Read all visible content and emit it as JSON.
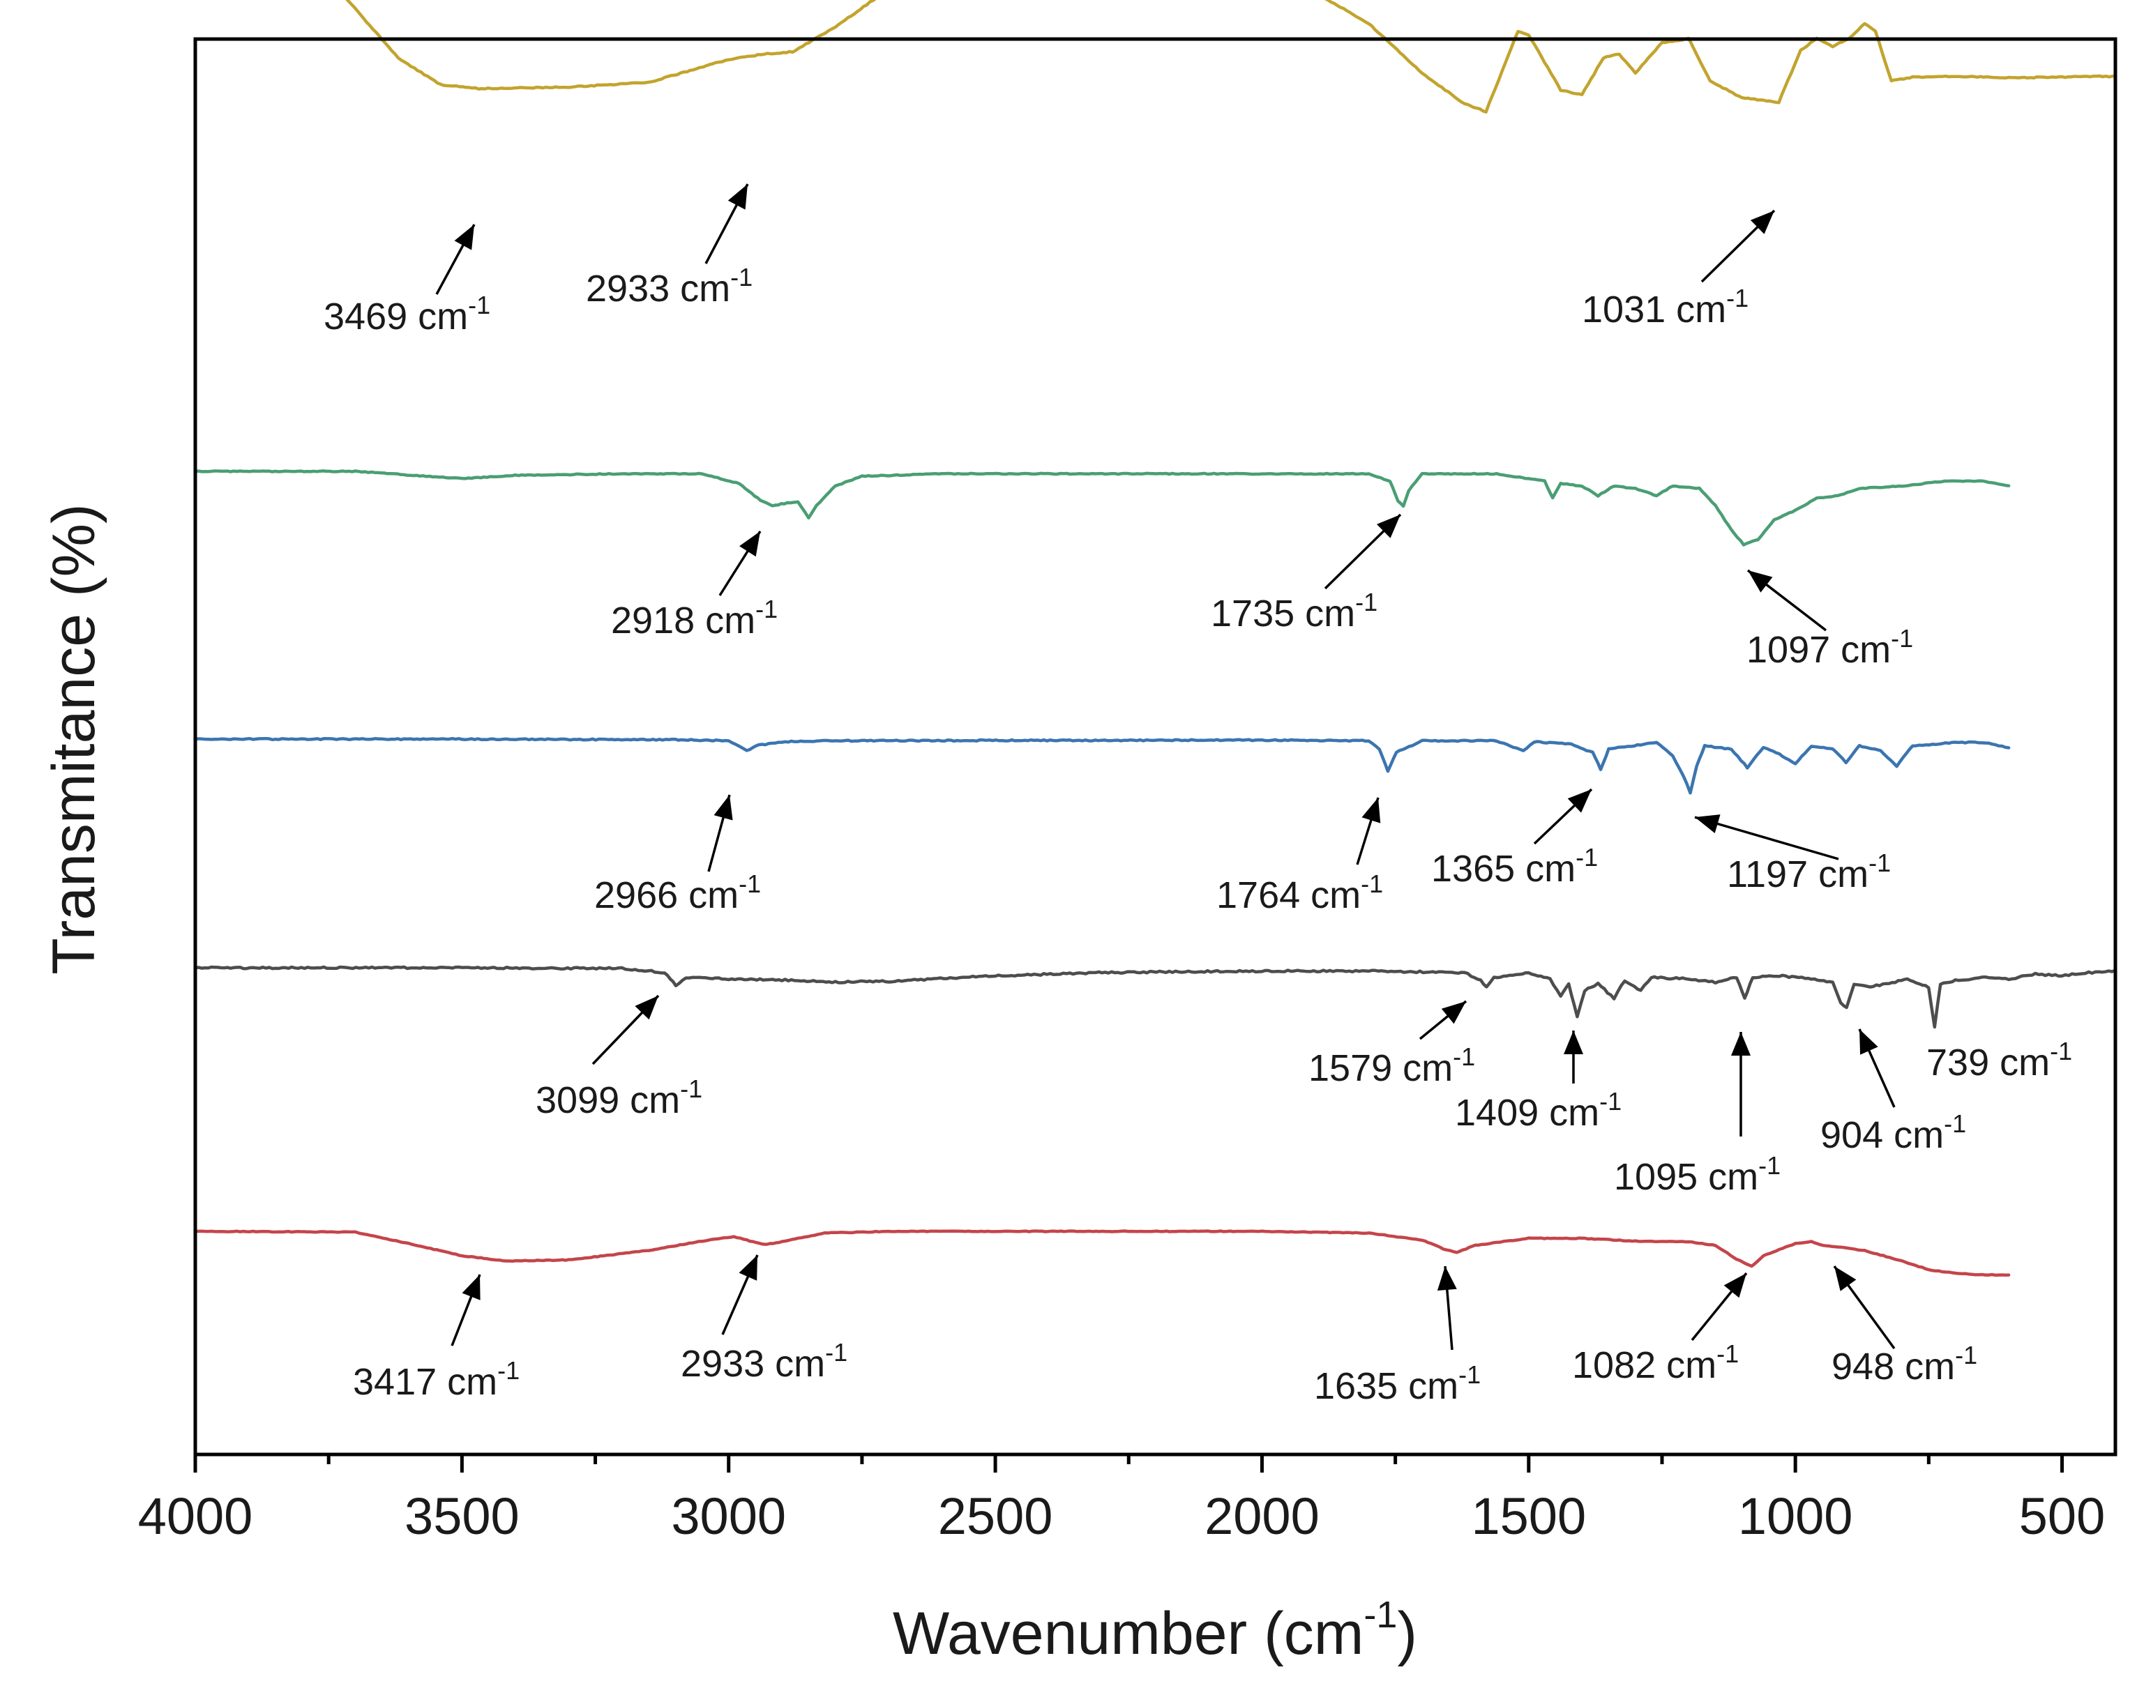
{
  "chart_data": {
    "type": "line",
    "title": "",
    "xlabel": "Wavenumber (cm",
    "xlabel_sup": "-1",
    "xlabel_close": ")",
    "ylabel": "Transmitance (%)",
    "xlim": [
      4000,
      400
    ],
    "x_reversed": true,
    "x_ticks": [
      4000,
      3500,
      3000,
      2500,
      2000,
      1500,
      1000,
      500
    ],
    "x_minor_step": 250,
    "y_ticks_shown": false,
    "legend": "none",
    "grid": false,
    "series": [
      {
        "color": "#c2a42e",
        "x_range": [
          4000,
          400
        ],
        "baseline_offset": 2.4,
        "points": [
          [
            4000,
            2.4
          ],
          [
            3880,
            2.28
          ],
          [
            3780,
            2.05
          ],
          [
            3720,
            1.7
          ],
          [
            3620,
            0.9
          ],
          [
            3540,
            0.55
          ],
          [
            3469,
            0.5
          ],
          [
            3300,
            0.52
          ],
          [
            3150,
            0.58
          ],
          [
            3000,
            0.88
          ],
          [
            2933,
            0.95
          ],
          [
            2880,
            0.98
          ],
          [
            2800,
            1.3
          ],
          [
            2700,
            1.8
          ],
          [
            2600,
            2.1
          ],
          [
            2500,
            2.35
          ],
          [
            2400,
            2.4
          ],
          [
            2300,
            2.3
          ],
          [
            2200,
            2.1
          ],
          [
            2100,
            2.05
          ],
          [
            2000,
            2.0
          ],
          [
            1900,
            1.75
          ],
          [
            1800,
            1.35
          ],
          [
            1700,
            0.7
          ],
          [
            1620,
            0.3
          ],
          [
            1580,
            0.2
          ],
          [
            1520,
            1.25
          ],
          [
            1500,
            1.2
          ],
          [
            1440,
            0.48
          ],
          [
            1400,
            0.42
          ],
          [
            1360,
            0.9
          ],
          [
            1330,
            0.95
          ],
          [
            1300,
            0.7
          ],
          [
            1250,
            1.1
          ],
          [
            1200,
            1.15
          ],
          [
            1160,
            0.6
          ],
          [
            1100,
            0.38
          ],
          [
            1031,
            0.32
          ],
          [
            990,
            1.0
          ],
          [
            960,
            1.15
          ],
          [
            930,
            1.05
          ],
          [
            900,
            1.15
          ],
          [
            870,
            1.35
          ],
          [
            850,
            1.25
          ],
          [
            820,
            0.6
          ],
          [
            780,
            0.65
          ],
          [
            700,
            0.66
          ],
          [
            600,
            0.64
          ],
          [
            500,
            0.65
          ],
          [
            400,
            0.66
          ]
        ],
        "peaks": [
          {
            "label": "3469 cm",
            "sup": "-1",
            "x": 3469
          },
          {
            "label": "2933 cm",
            "sup": "-1",
            "x": 2933
          },
          {
            "label": "1031 cm",
            "sup": "-1",
            "x": 1031
          }
        ]
      },
      {
        "color": "#4a9e74",
        "x_range": [
          4000,
          600
        ],
        "points": [
          [
            4000,
            0
          ],
          [
            3700,
            0
          ],
          [
            3500,
            -0.15
          ],
          [
            3400,
            -0.08
          ],
          [
            3200,
            -0.05
          ],
          [
            3050,
            -0.05
          ],
          [
            2980,
            -0.25
          ],
          [
            2940,
            -0.6
          ],
          [
            2918,
            -0.7
          ],
          [
            2890,
            -0.65
          ],
          [
            2870,
            -0.62
          ],
          [
            2850,
            -0.95
          ],
          [
            2835,
            -0.7
          ],
          [
            2800,
            -0.3
          ],
          [
            2750,
            -0.1
          ],
          [
            2600,
            -0.05
          ],
          [
            2300,
            -0.05
          ],
          [
            2000,
            -0.05
          ],
          [
            1800,
            -0.05
          ],
          [
            1760,
            -0.2
          ],
          [
            1745,
            -0.6
          ],
          [
            1735,
            -0.72
          ],
          [
            1725,
            -0.4
          ],
          [
            1700,
            -0.05
          ],
          [
            1560,
            -0.05
          ],
          [
            1470,
            -0.2
          ],
          [
            1455,
            -0.55
          ],
          [
            1440,
            -0.25
          ],
          [
            1400,
            -0.3
          ],
          [
            1370,
            -0.5
          ],
          [
            1340,
            -0.3
          ],
          [
            1300,
            -0.35
          ],
          [
            1260,
            -0.5
          ],
          [
            1230,
            -0.3
          ],
          [
            1180,
            -0.35
          ],
          [
            1150,
            -0.7
          ],
          [
            1120,
            -1.2
          ],
          [
            1097,
            -1.5
          ],
          [
            1070,
            -1.4
          ],
          [
            1040,
            -1.0
          ],
          [
            1000,
            -0.8
          ],
          [
            960,
            -0.55
          ],
          [
            920,
            -0.5
          ],
          [
            880,
            -0.35
          ],
          [
            800,
            -0.3
          ],
          [
            720,
            -0.2
          ],
          [
            650,
            -0.2
          ],
          [
            600,
            -0.3
          ]
        ],
        "peaks": [
          {
            "label": "2918 cm",
            "sup": "-1",
            "x": 2918
          },
          {
            "label": "1735 cm",
            "sup": "-1",
            "x": 1735
          },
          {
            "label": "1097 cm",
            "sup": "-1",
            "x": 1097
          }
        ]
      },
      {
        "color": "#3b75b0",
        "x_range": [
          4000,
          600
        ],
        "points": [
          [
            4000,
            0
          ],
          [
            3500,
            0
          ],
          [
            3100,
            -0.02
          ],
          [
            3000,
            -0.05
          ],
          [
            2980,
            -0.2
          ],
          [
            2966,
            -0.35
          ],
          [
            2950,
            -0.2
          ],
          [
            2900,
            -0.08
          ],
          [
            2800,
            -0.05
          ],
          [
            2000,
            -0.03
          ],
          [
            1800,
            -0.05
          ],
          [
            1780,
            -0.3
          ],
          [
            1764,
            -0.95
          ],
          [
            1748,
            -0.4
          ],
          [
            1700,
            -0.05
          ],
          [
            1560,
            -0.05
          ],
          [
            1510,
            -0.35
          ],
          [
            1490,
            -0.08
          ],
          [
            1420,
            -0.15
          ],
          [
            1380,
            -0.4
          ],
          [
            1365,
            -0.9
          ],
          [
            1350,
            -0.3
          ],
          [
            1260,
            -0.1
          ],
          [
            1230,
            -0.5
          ],
          [
            1210,
            -1.1
          ],
          [
            1197,
            -1.6
          ],
          [
            1185,
            -0.8
          ],
          [
            1170,
            -0.2
          ],
          [
            1120,
            -0.3
          ],
          [
            1090,
            -0.85
          ],
          [
            1060,
            -0.25
          ],
          [
            1030,
            -0.45
          ],
          [
            1000,
            -0.75
          ],
          [
            970,
            -0.2
          ],
          [
            930,
            -0.3
          ],
          [
            905,
            -0.7
          ],
          [
            880,
            -0.2
          ],
          [
            840,
            -0.35
          ],
          [
            810,
            -0.8
          ],
          [
            780,
            -0.2
          ],
          [
            700,
            -0.1
          ],
          [
            650,
            -0.1
          ],
          [
            600,
            -0.25
          ]
        ],
        "peaks": [
          {
            "label": "2966 cm",
            "sup": "-1",
            "x": 2966
          },
          {
            "label": "1764 cm",
            "sup": "-1",
            "x": 1764
          },
          {
            "label": "1365 cm",
            "sup": "-1",
            "x": 1365
          },
          {
            "label": "1197 cm",
            "sup": "-1",
            "x": 1197
          }
        ]
      },
      {
        "color": "#4d4d4d",
        "x_range": [
          4000,
          400
        ],
        "points": [
          [
            4000,
            0
          ],
          [
            3500,
            0
          ],
          [
            3200,
            -0.02
          ],
          [
            3120,
            -0.15
          ],
          [
            3099,
            -0.55
          ],
          [
            3080,
            -0.3
          ],
          [
            3000,
            -0.35
          ],
          [
            2900,
            -0.38
          ],
          [
            2800,
            -0.45
          ],
          [
            2700,
            -0.42
          ],
          [
            2500,
            -0.25
          ],
          [
            2300,
            -0.15
          ],
          [
            2000,
            -0.1
          ],
          [
            1800,
            -0.1
          ],
          [
            1620,
            -0.15
          ],
          [
            1590,
            -0.4
          ],
          [
            1579,
            -0.6
          ],
          [
            1565,
            -0.3
          ],
          [
            1500,
            -0.15
          ],
          [
            1460,
            -0.35
          ],
          [
            1440,
            -0.9
          ],
          [
            1425,
            -0.5
          ],
          [
            1409,
            -1.55
          ],
          [
            1395,
            -0.7
          ],
          [
            1370,
            -0.5
          ],
          [
            1340,
            -0.95
          ],
          [
            1320,
            -0.4
          ],
          [
            1290,
            -0.7
          ],
          [
            1270,
            -0.3
          ],
          [
            1200,
            -0.35
          ],
          [
            1150,
            -0.45
          ],
          [
            1110,
            -0.3
          ],
          [
            1095,
            -0.95
          ],
          [
            1080,
            -0.3
          ],
          [
            1030,
            -0.25
          ],
          [
            970,
            -0.35
          ],
          [
            930,
            -0.45
          ],
          [
            915,
            -1.1
          ],
          [
            904,
            -1.25
          ],
          [
            890,
            -0.5
          ],
          [
            860,
            -0.6
          ],
          [
            830,
            -0.5
          ],
          [
            790,
            -0.35
          ],
          [
            750,
            -0.6
          ],
          [
            739,
            -1.85
          ],
          [
            728,
            -0.5
          ],
          [
            700,
            -0.4
          ],
          [
            650,
            -0.3
          ],
          [
            600,
            -0.35
          ],
          [
            550,
            -0.2
          ],
          [
            500,
            -0.25
          ],
          [
            450,
            -0.15
          ],
          [
            400,
            -0.1
          ]
        ],
        "peaks": [
          {
            "label": "3099 cm",
            "sup": "-1",
            "x": 3099
          },
          {
            "label": "1579 cm",
            "sup": "-1",
            "x": 1579
          },
          {
            "label": "1409 cm",
            "sup": "-1",
            "x": 1409
          },
          {
            "label": "1095 cm",
            "sup": "-1",
            "x": 1095
          },
          {
            "label": "904 cm",
            "sup": "-1",
            "x": 904
          },
          {
            "label": "739 cm",
            "sup": "-1",
            "x": 739
          }
        ]
      },
      {
        "color": "#c4454a",
        "x_range": [
          4000,
          600
        ],
        "points": [
          [
            4000,
            0
          ],
          [
            3700,
            -0.02
          ],
          [
            3600,
            -0.35
          ],
          [
            3500,
            -0.7
          ],
          [
            3417,
            -0.85
          ],
          [
            3300,
            -0.82
          ],
          [
            3150,
            -0.55
          ],
          [
            3050,
            -0.28
          ],
          [
            2990,
            -0.15
          ],
          [
            2960,
            -0.28
          ],
          [
            2933,
            -0.38
          ],
          [
            2900,
            -0.3
          ],
          [
            2820,
            -0.05
          ],
          [
            2700,
            0
          ],
          [
            2000,
            0
          ],
          [
            1800,
            -0.05
          ],
          [
            1700,
            -0.25
          ],
          [
            1660,
            -0.5
          ],
          [
            1635,
            -0.6
          ],
          [
            1600,
            -0.4
          ],
          [
            1500,
            -0.2
          ],
          [
            1400,
            -0.2
          ],
          [
            1300,
            -0.28
          ],
          [
            1200,
            -0.3
          ],
          [
            1150,
            -0.4
          ],
          [
            1110,
            -0.8
          ],
          [
            1082,
            -1.0
          ],
          [
            1060,
            -0.7
          ],
          [
            1000,
            -0.35
          ],
          [
            970,
            -0.3
          ],
          [
            948,
            -0.4
          ],
          [
            920,
            -0.45
          ],
          [
            870,
            -0.55
          ],
          [
            800,
            -0.85
          ],
          [
            750,
            -1.1
          ],
          [
            700,
            -1.2
          ],
          [
            650,
            -1.25
          ],
          [
            600,
            -1.25
          ]
        ],
        "peaks": [
          {
            "label": "3417 cm",
            "sup": "-1",
            "x": 3417
          },
          {
            "label": "2933 cm",
            "sup": "-1",
            "x": 2933
          },
          {
            "label": "1635 cm",
            "sup": "-1",
            "x": 1635
          },
          {
            "label": "1082 cm",
            "sup": "-1",
            "x": 1082
          },
          {
            "label": "948 cm",
            "sup": "-1",
            "x": 948
          }
        ]
      }
    ]
  }
}
